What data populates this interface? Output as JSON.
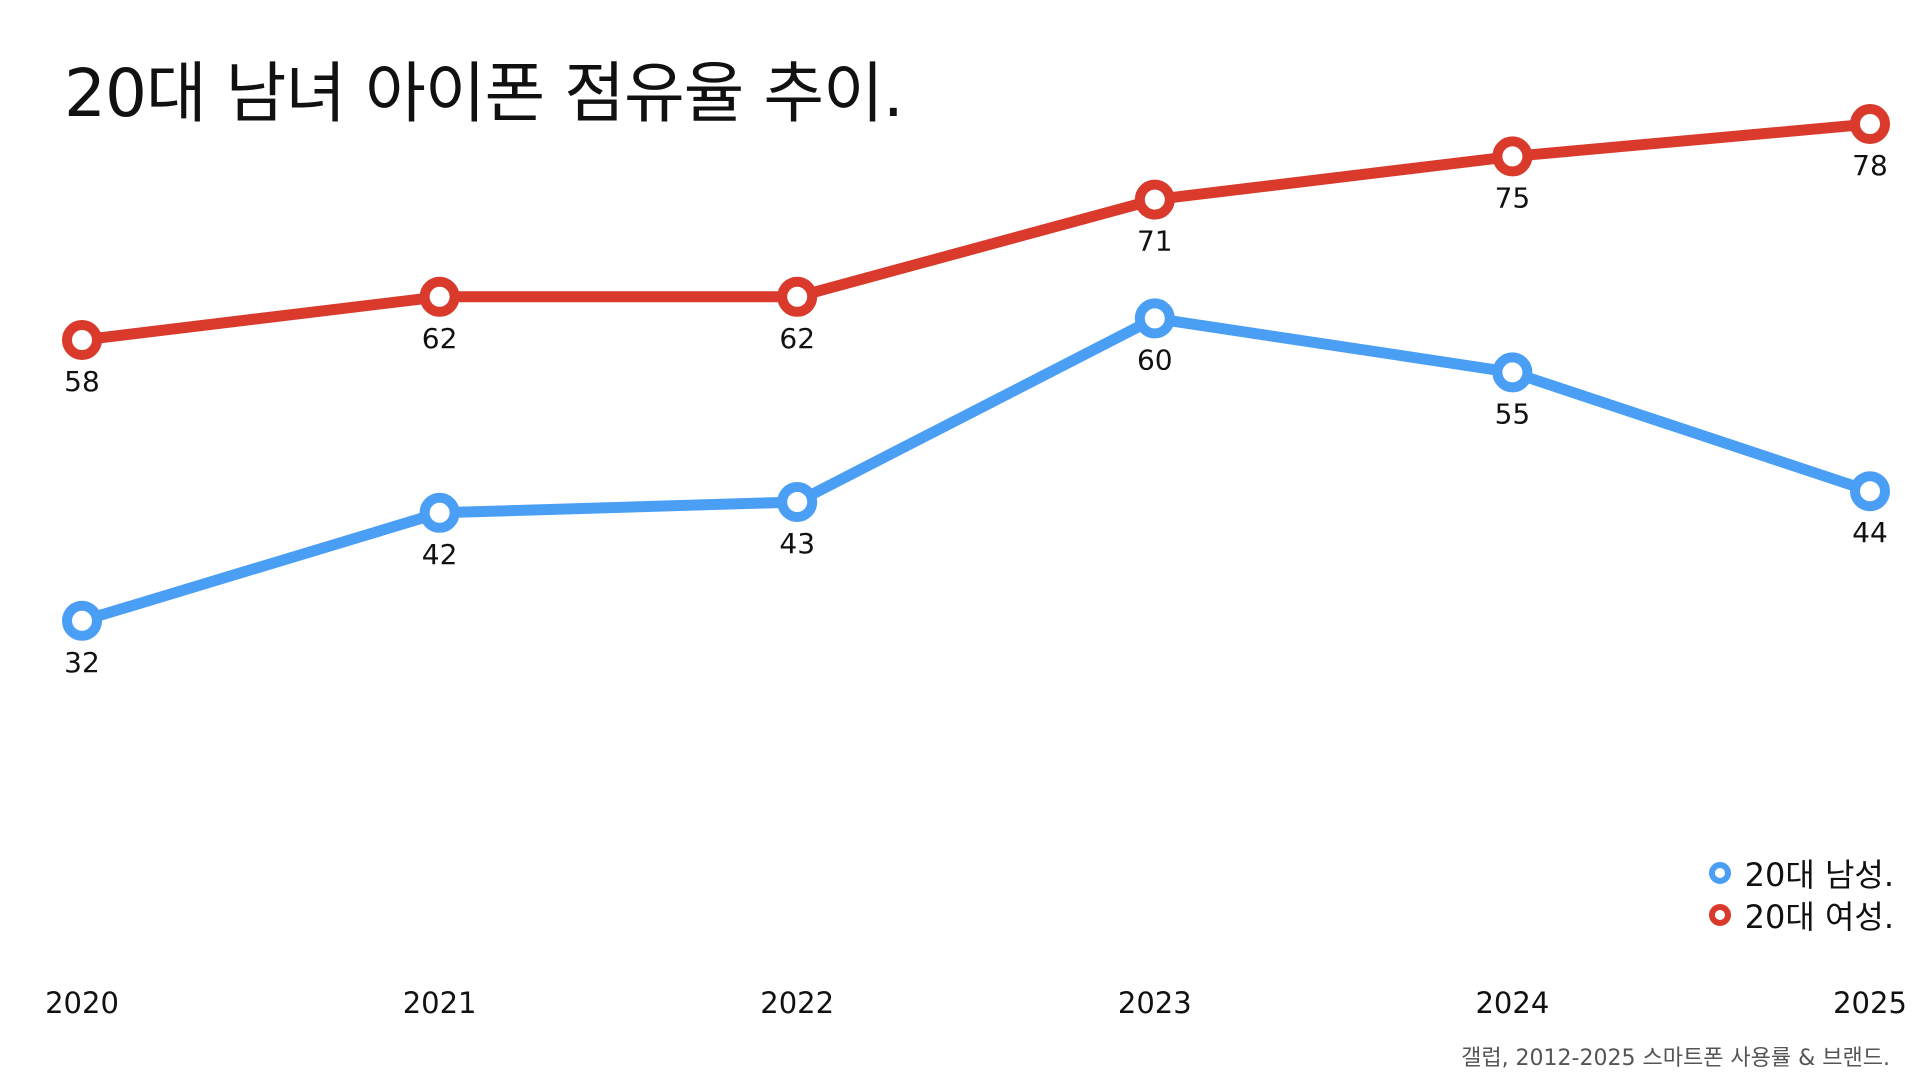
{
  "title": "20대 남녀 아이폰 점유율 추이.",
  "source": "갤럽, 2012-2025 스마트폰 사용률 & 브랜드.",
  "chart_data": {
    "type": "line",
    "title": "20대 남녀 아이폰 점유율 추이.",
    "x": [
      "2020",
      "2021",
      "2022",
      "2023",
      "2024",
      "2025"
    ],
    "ylim": [
      20,
      85
    ],
    "grid": false,
    "legend_position": "bottom-right",
    "series": [
      {
        "name": "20대 남성.",
        "color": "#4a9ff5",
        "values": [
          32,
          42,
          43,
          60,
          55,
          44
        ],
        "labels": [
          "32",
          "42",
          "43",
          "60",
          "55",
          "44"
        ]
      },
      {
        "name": "20대 여성.",
        "color": "#d93a2b",
        "values": [
          58,
          62,
          62,
          71,
          75,
          78
        ],
        "labels": [
          "58",
          "62",
          "62",
          "71",
          "75",
          "78"
        ]
      }
    ]
  }
}
